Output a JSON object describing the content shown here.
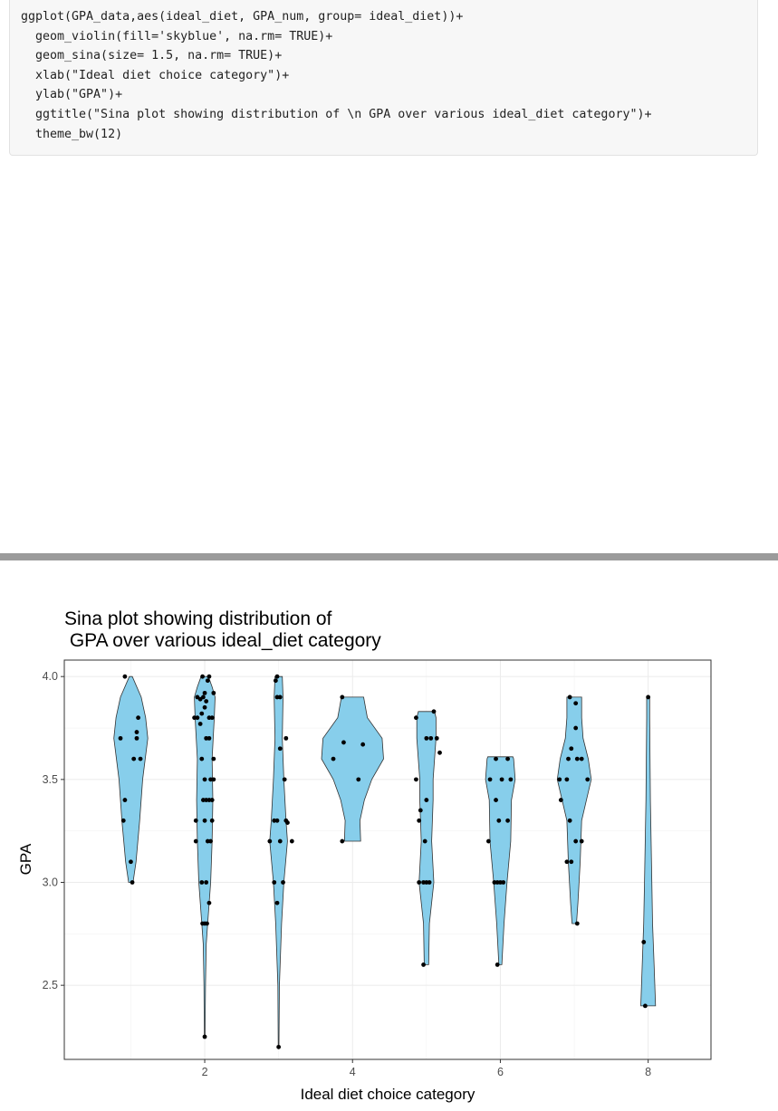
{
  "code": {
    "lines": [
      "ggplot(GPA_data,aes(ideal_diet, GPA_num, group= ideal_diet))+",
      "  geom_violin(fill='skyblue', na.rm= TRUE)+",
      "  geom_sina(size= 1.5, na.rm= TRUE)+",
      "  xlab(\"Ideal diet choice category\")+",
      "  ylab(\"GPA\")+",
      "  ggtitle(\"Sina plot showing distribution of \\n GPA over various ideal_diet category\")+",
      "  theme_bw(12)"
    ]
  },
  "chart_data": {
    "type": "violin",
    "title_lines": [
      "Sina plot showing distribution of",
      " GPA over various ideal_diet category"
    ],
    "xlabel": "Ideal diet choice category",
    "ylabel": "GPA",
    "xlim": [
      0.1,
      8.85
    ],
    "ylim": [
      2.14,
      4.08
    ],
    "x_ticks": [
      "2",
      "4",
      "6",
      "8"
    ],
    "y_ticks": [
      "2.5",
      "3.0",
      "3.5",
      "4.0"
    ],
    "grid": true,
    "fill_color": "#87ceeb",
    "groups": [
      {
        "category": 1,
        "profile": [
          [
            3.0,
            0.03
          ],
          [
            3.1,
            0.07
          ],
          [
            3.3,
            0.12
          ],
          [
            3.5,
            0.16
          ],
          [
            3.7,
            0.23
          ],
          [
            3.8,
            0.2
          ],
          [
            3.9,
            0.14
          ],
          [
            4.0,
            0.02
          ]
        ],
        "points": [
          [
            0.86,
            3.7
          ],
          [
            1.1,
            3.8
          ],
          [
            1.08,
            3.73
          ],
          [
            1.08,
            3.7
          ],
          [
            1.04,
            3.6
          ],
          [
            1.13,
            3.6
          ],
          [
            0.92,
            3.4
          ],
          [
            0.9,
            3.3
          ],
          [
            1.0,
            3.1
          ],
          [
            1.02,
            3.0
          ],
          [
            0.92,
            4.0
          ]
        ]
      },
      {
        "category": 2,
        "profile": [
          [
            2.25,
            0.005
          ],
          [
            2.5,
            0.01
          ],
          [
            2.7,
            0.02
          ],
          [
            2.8,
            0.04
          ],
          [
            3.0,
            0.08
          ],
          [
            3.2,
            0.1
          ],
          [
            3.4,
            0.11
          ],
          [
            3.6,
            0.1
          ],
          [
            3.8,
            0.13
          ],
          [
            3.9,
            0.14
          ],
          [
            3.95,
            0.1
          ],
          [
            4.0,
            0.05
          ]
        ],
        "points": [
          [
            1.97,
            4.0
          ],
          [
            2.06,
            4.0
          ],
          [
            2.04,
            3.98
          ],
          [
            2.0,
            3.92
          ],
          [
            2.12,
            3.92
          ],
          [
            1.9,
            3.9
          ],
          [
            1.94,
            3.89
          ],
          [
            1.98,
            3.9
          ],
          [
            2.02,
            3.88
          ],
          [
            1.96,
            3.82
          ],
          [
            2.0,
            3.85
          ],
          [
            1.86,
            3.8
          ],
          [
            1.9,
            3.8
          ],
          [
            2.06,
            3.8
          ],
          [
            2.1,
            3.8
          ],
          [
            1.94,
            3.77
          ],
          [
            2.02,
            3.7
          ],
          [
            2.06,
            3.7
          ],
          [
            1.96,
            3.6
          ],
          [
            2.12,
            3.6
          ],
          [
            2.0,
            3.5
          ],
          [
            2.08,
            3.5
          ],
          [
            2.12,
            3.5
          ],
          [
            1.98,
            3.4
          ],
          [
            2.02,
            3.4
          ],
          [
            2.06,
            3.4
          ],
          [
            2.1,
            3.4
          ],
          [
            1.88,
            3.3
          ],
          [
            2.0,
            3.3
          ],
          [
            2.1,
            3.3
          ],
          [
            1.88,
            3.2
          ],
          [
            2.04,
            3.2
          ],
          [
            2.08,
            3.2
          ],
          [
            1.96,
            3.0
          ],
          [
            2.02,
            3.0
          ],
          [
            2.06,
            2.9
          ],
          [
            1.97,
            2.8
          ],
          [
            2.0,
            2.8
          ],
          [
            2.03,
            2.8
          ],
          [
            2.0,
            2.25
          ]
        ]
      },
      {
        "category": 3,
        "profile": [
          [
            2.2,
            0.005
          ],
          [
            2.5,
            0.01
          ],
          [
            2.8,
            0.04
          ],
          [
            3.0,
            0.07
          ],
          [
            3.2,
            0.12
          ],
          [
            3.3,
            0.1
          ],
          [
            3.5,
            0.07
          ],
          [
            3.7,
            0.05
          ],
          [
            3.9,
            0.06
          ],
          [
            4.0,
            0.05
          ]
        ],
        "points": [
          [
            2.98,
            4.0
          ],
          [
            2.96,
            3.98
          ],
          [
            2.98,
            3.9
          ],
          [
            3.02,
            3.9
          ],
          [
            3.1,
            3.7
          ],
          [
            3.02,
            3.65
          ],
          [
            3.08,
            3.5
          ],
          [
            2.94,
            3.3
          ],
          [
            2.98,
            3.3
          ],
          [
            3.1,
            3.3
          ],
          [
            3.12,
            3.29
          ],
          [
            2.88,
            3.2
          ],
          [
            3.02,
            3.2
          ],
          [
            3.18,
            3.2
          ],
          [
            2.94,
            3.0
          ],
          [
            3.06,
            3.0
          ],
          [
            2.98,
            2.9
          ],
          [
            3.0,
            2.2
          ]
        ]
      },
      {
        "category": 4,
        "profile": [
          [
            3.2,
            0.11
          ],
          [
            3.3,
            0.1
          ],
          [
            3.4,
            0.16
          ],
          [
            3.5,
            0.26
          ],
          [
            3.6,
            0.42
          ],
          [
            3.7,
            0.4
          ],
          [
            3.8,
            0.2
          ],
          [
            3.9,
            0.15
          ]
        ],
        "points": [
          [
            3.86,
            3.9
          ],
          [
            3.74,
            3.6
          ],
          [
            3.88,
            3.68
          ],
          [
            4.14,
            3.67
          ],
          [
            4.08,
            3.5
          ],
          [
            3.86,
            3.2
          ]
        ]
      },
      {
        "category": 5,
        "profile": [
          [
            2.6,
            0.03
          ],
          [
            2.8,
            0.04
          ],
          [
            3.0,
            0.1
          ],
          [
            3.2,
            0.07
          ],
          [
            3.4,
            0.09
          ],
          [
            3.5,
            0.09
          ],
          [
            3.7,
            0.13
          ],
          [
            3.8,
            0.13
          ],
          [
            3.83,
            0.11
          ]
        ],
        "points": [
          [
            4.86,
            3.8
          ],
          [
            5.1,
            3.83
          ],
          [
            5.0,
            3.7
          ],
          [
            5.06,
            3.7
          ],
          [
            5.14,
            3.7
          ],
          [
            5.18,
            3.63
          ],
          [
            4.86,
            3.5
          ],
          [
            5.0,
            3.4
          ],
          [
            4.92,
            3.35
          ],
          [
            4.9,
            3.3
          ],
          [
            4.98,
            3.2
          ],
          [
            4.9,
            3.0
          ],
          [
            4.96,
            3.0
          ],
          [
            5.0,
            3.0
          ],
          [
            5.04,
            3.0
          ],
          [
            4.96,
            2.6
          ]
        ]
      },
      {
        "category": 6,
        "profile": [
          [
            2.6,
            0.02
          ],
          [
            2.8,
            0.05
          ],
          [
            3.0,
            0.09
          ],
          [
            3.2,
            0.14
          ],
          [
            3.4,
            0.15
          ],
          [
            3.5,
            0.2
          ],
          [
            3.6,
            0.18
          ],
          [
            3.61,
            0.17
          ]
        ],
        "points": [
          [
            5.94,
            3.6
          ],
          [
            6.1,
            3.6
          ],
          [
            5.86,
            3.5
          ],
          [
            6.02,
            3.5
          ],
          [
            6.14,
            3.5
          ],
          [
            5.94,
            3.4
          ],
          [
            5.98,
            3.3
          ],
          [
            6.1,
            3.3
          ],
          [
            5.84,
            3.2
          ],
          [
            5.92,
            3.0
          ],
          [
            5.96,
            3.0
          ],
          [
            6.0,
            3.0
          ],
          [
            6.04,
            3.0
          ],
          [
            5.96,
            2.6
          ]
        ]
      },
      {
        "category": 7,
        "profile": [
          [
            2.8,
            0.03
          ],
          [
            2.9,
            0.05
          ],
          [
            3.1,
            0.08
          ],
          [
            3.3,
            0.1
          ],
          [
            3.5,
            0.23
          ],
          [
            3.6,
            0.19
          ],
          [
            3.7,
            0.12
          ],
          [
            3.8,
            0.1
          ],
          [
            3.9,
            0.1
          ]
        ],
        "points": [
          [
            6.94,
            3.9
          ],
          [
            7.02,
            3.87
          ],
          [
            7.02,
            3.75
          ],
          [
            6.96,
            3.65
          ],
          [
            6.92,
            3.6
          ],
          [
            7.04,
            3.6
          ],
          [
            7.1,
            3.6
          ],
          [
            6.8,
            3.5
          ],
          [
            6.9,
            3.5
          ],
          [
            7.18,
            3.5
          ],
          [
            6.82,
            3.4
          ],
          [
            6.94,
            3.3
          ],
          [
            7.02,
            3.2
          ],
          [
            7.1,
            3.2
          ],
          [
            6.96,
            3.1
          ],
          [
            6.9,
            3.1
          ],
          [
            7.04,
            2.8
          ]
        ]
      },
      {
        "category": 8,
        "profile": [
          [
            2.4,
            0.1
          ],
          [
            2.6,
            0.08
          ],
          [
            2.8,
            0.06
          ],
          [
            3.0,
            0.05
          ],
          [
            3.2,
            0.04
          ],
          [
            3.4,
            0.03
          ],
          [
            3.6,
            0.025
          ],
          [
            3.8,
            0.02
          ],
          [
            3.9,
            0.02
          ]
        ],
        "points": [
          [
            8.0,
            3.9
          ],
          [
            7.94,
            2.71
          ],
          [
            7.96,
            2.4
          ]
        ]
      }
    ]
  }
}
